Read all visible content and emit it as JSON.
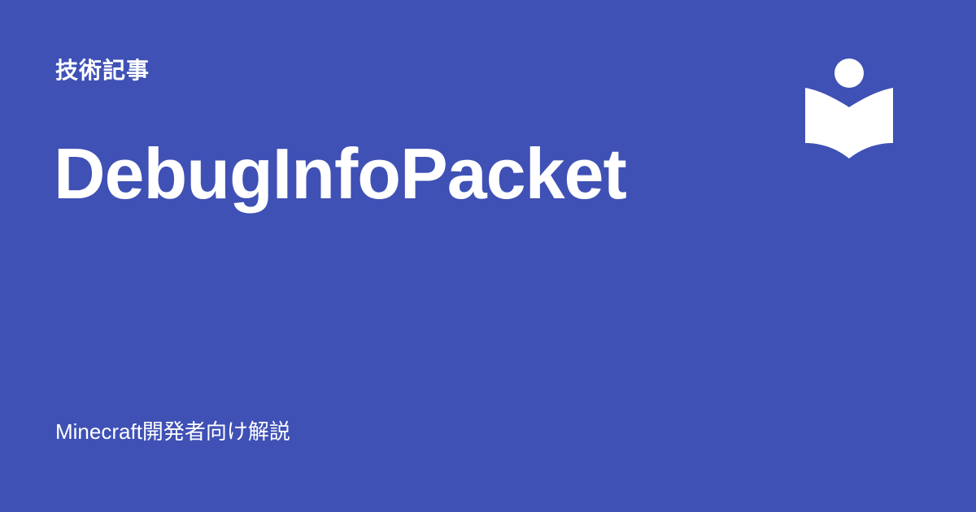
{
  "card": {
    "category": "技術記事",
    "title": "DebugInfoPacket",
    "footer": "Minecraft開発者向け解説"
  },
  "logo": {
    "icon": "reader-book-icon",
    "color": "#ffffff"
  },
  "theme": {
    "background": "#3f51b5",
    "text": "#ffffff"
  }
}
